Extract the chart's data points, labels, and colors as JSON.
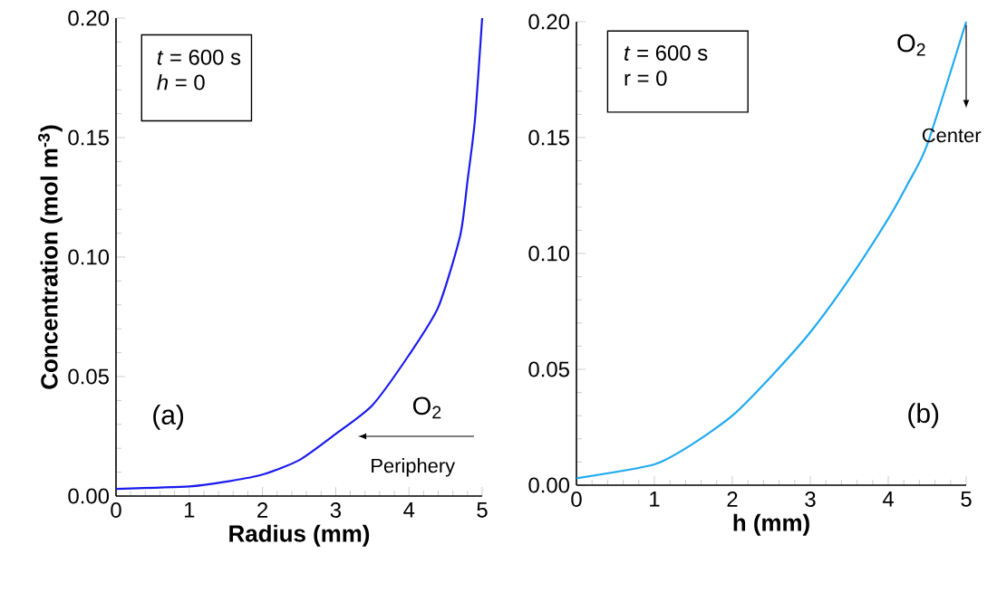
{
  "chart_data": [
    {
      "type": "line",
      "xlabel": "Radius (mm)",
      "ylabel": "Concentration (mol m$^{-3}$)",
      "x": [
        0,
        1,
        1.5,
        2,
        2.5,
        3,
        3.5,
        4,
        4.4,
        4.7,
        4.8,
        4.9,
        5
      ],
      "series": [
        {
          "color": "#1a1aee",
          "values": [
            0.003,
            0.004,
            0.006,
            0.009,
            0.015,
            0.026,
            0.038,
            0.059,
            0.079,
            0.109,
            0.132,
            0.157,
            0.2
          ]
        }
      ],
      "xlim": [
        0,
        5
      ],
      "ylim": [
        0,
        0.2
      ],
      "xticks": [
        0,
        1,
        2,
        3,
        4,
        5
      ],
      "yticks": [
        {
          "value": 0,
          "label": "0.00"
        },
        {
          "value": 0.05,
          "label": "0.05"
        },
        {
          "value": 0.1,
          "label": "0.10"
        },
        {
          "value": 0.15,
          "label": "0.15"
        },
        {
          "value": 0.2,
          "label": "0.20"
        }
      ],
      "annotations": [
        "*t* = 600 s",
        "*h* = 0",
        "(a)",
        "O$_{2}$",
        "Periphery"
      ]
    },
    {
      "type": "line",
      "xlabel": "h (mm)",
      "x": [
        0,
        1,
        1.5,
        2,
        2.5,
        3,
        3.5,
        4,
        4.25,
        4.5,
        5
      ],
      "series": [
        {
          "color": "#20aaf0",
          "values": [
            0.003,
            0.009,
            0.018,
            0.03,
            0.047,
            0.066,
            0.089,
            0.115,
            0.13,
            0.147,
            0.2
          ]
        }
      ],
      "xlim": [
        0,
        5
      ],
      "ylim": [
        0,
        0.2
      ],
      "xticks": [
        0,
        1,
        2,
        3,
        4,
        5
      ],
      "yticks": [
        {
          "value": 0,
          "label": "0.00"
        },
        {
          "value": 0.05,
          "label": "0.05"
        },
        {
          "value": 0.1,
          "label": "0.10"
        },
        {
          "value": 0.15,
          "label": "0.15"
        },
        {
          "value": 0.2,
          "label": "0.20"
        }
      ],
      "annotations": [
        "*t* = 600 s",
        "r = 0",
        "(b)",
        "O$_{2}$",
        "Center"
      ]
    }
  ]
}
